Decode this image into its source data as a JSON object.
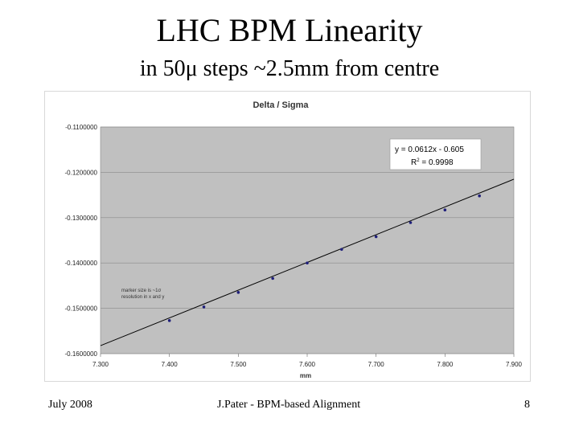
{
  "slide": {
    "title": "LHC BPM Linearity",
    "subtitle": "in 50μ steps ~2.5mm from centre",
    "footer_left": "July 2008",
    "footer_center": "J.Pater - BPM-based Alignment",
    "footer_right": "8"
  },
  "colors": {
    "plot_background": "#c0c0c0",
    "marker": "#1f1f7a",
    "trendline": "#000000"
  },
  "chart_data": {
    "type": "scatter",
    "title": "Delta / Sigma",
    "xlabel": "mm",
    "ylabel": "",
    "xlim": [
      7.3,
      7.9
    ],
    "ylim": [
      -0.16,
      -0.11
    ],
    "xticks": [
      7.3,
      7.4,
      7.5,
      7.6,
      7.7,
      7.8,
      7.9
    ],
    "xtick_labels": [
      "7.300",
      "7.400",
      "7.500",
      "7.600",
      "7.700",
      "7.800",
      "7.900"
    ],
    "yticks": [
      -0.11,
      -0.12,
      -0.13,
      -0.14,
      -0.15,
      -0.16
    ],
    "ytick_labels": [
      "-0.1100000",
      "-0.1200000",
      "-0.1300000",
      "-0.1400000",
      "-0.1500000",
      "-0.1600000"
    ],
    "grid": true,
    "series": [
      {
        "x": [
          7.4,
          7.45,
          7.5,
          7.55,
          7.6,
          7.65,
          7.7,
          7.75,
          7.8,
          7.85
        ],
        "y": [
          -0.1527,
          -0.1497,
          -0.1465,
          -0.1434,
          -0.14,
          -0.137,
          -0.1342,
          -0.1311,
          -0.1283,
          -0.1252
        ]
      }
    ],
    "trendline": {
      "slope": 0.0612,
      "intercept": -0.605,
      "equation": "y = 0.0612x - 0.605",
      "r2_prefix": "R",
      "r2_sup": "2",
      "r2_suffix": " = 0.9998"
    },
    "annotation": {
      "line1": "marker size is ~1σ",
      "line2": "resolution in x and y"
    }
  }
}
